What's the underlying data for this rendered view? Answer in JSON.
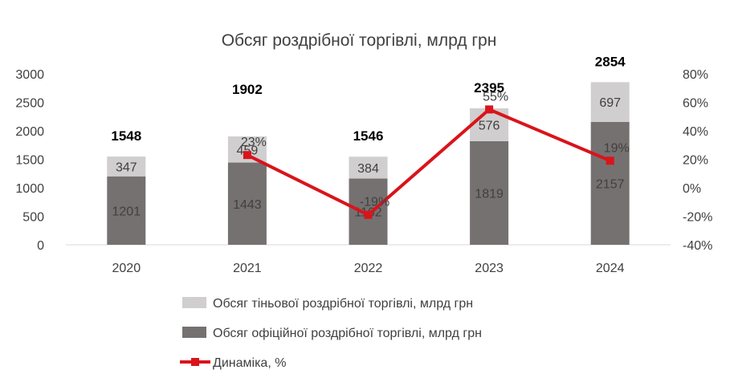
{
  "chart_data": {
    "type": "bar",
    "title": "Обсяг роздрібної торгівлі, млрд грн",
    "categories": [
      "2020",
      "2021",
      "2022",
      "2023",
      "2024"
    ],
    "series": [
      {
        "name": "Обсяг офіційної роздрібної торгівлі, млрд грн",
        "type": "bar",
        "stack": "total",
        "axis": "left",
        "color": "#767171",
        "values": [
          1201,
          1443,
          1162,
          1819,
          2157
        ]
      },
      {
        "name": "Обсяг тіньової роздрібної торгівлі, млрд грн",
        "type": "bar",
        "stack": "total",
        "axis": "left",
        "color": "#D0CECE",
        "values": [
          347,
          459,
          384,
          576,
          697
        ]
      },
      {
        "name": "Динаміка, %",
        "type": "line",
        "axis": "right",
        "color": "#D9141B",
        "values": [
          null,
          23,
          -19,
          55,
          19
        ],
        "labels": [
          "",
          "23%",
          "-19%",
          "55%",
          "19%"
        ]
      }
    ],
    "totals": [
      "1548",
      "1902",
      "1546",
      "2395",
      "2854"
    ],
    "y_left": {
      "ylim": [
        0,
        3000
      ],
      "ticks": [
        "0",
        "500",
        "1000",
        "1500",
        "2000",
        "2500",
        "3000"
      ]
    },
    "y_right": {
      "ylim": [
        -40,
        80
      ],
      "ticks": [
        "-40%",
        "-20%",
        "0%",
        "20%",
        "40%",
        "60%",
        "80%"
      ]
    },
    "grid": false,
    "legend_position": "bottom"
  }
}
